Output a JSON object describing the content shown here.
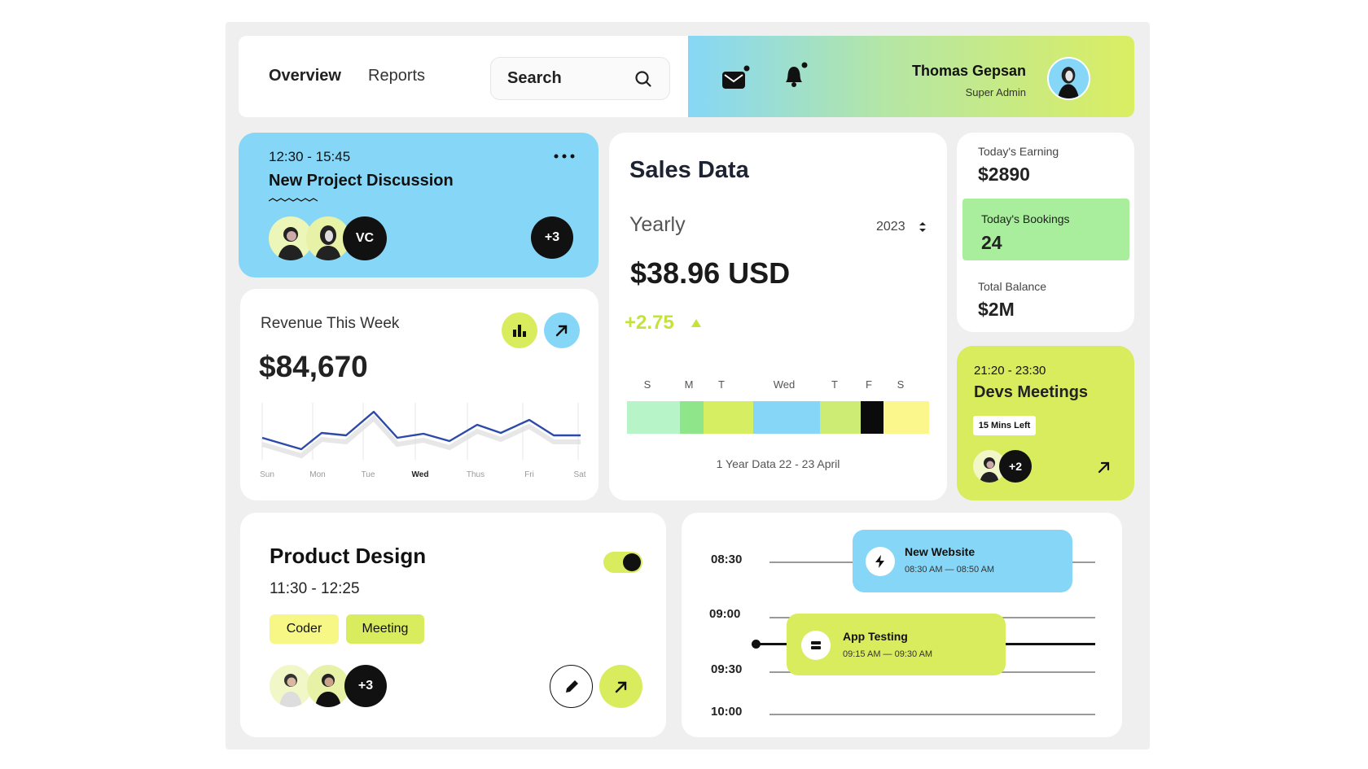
{
  "header": {
    "tabs": [
      {
        "label": "Overview"
      },
      {
        "label": "Reports"
      }
    ],
    "search": {
      "placeholder": "Search"
    },
    "user": {
      "name": "Thomas Gepsan",
      "role": "Super Admin"
    }
  },
  "meeting": {
    "time": "12:30 - 15:45",
    "title": "New Project Discussion",
    "initials": "VC",
    "extra": "+3"
  },
  "revenue": {
    "title": "Revenue This Week",
    "amount": "$84,670",
    "days": [
      "Sun",
      "Mon",
      "Tue",
      "Wed",
      "Thus",
      "Fri",
      "Sat"
    ],
    "active_day": "Wed"
  },
  "sales": {
    "title": "Sales Data",
    "period": "Yearly",
    "year": "2023",
    "amount": "$38.96 USD",
    "change": "+2.75",
    "day_labels": [
      "S",
      "M",
      "T",
      "Wed",
      "T",
      "F",
      "S"
    ],
    "segment_colors": [
      "#b7f5c9",
      "#8ee58a",
      "#d6ee62",
      "#86d7f7",
      "#cdec74",
      "#0b0b0b",
      "#fbf78c"
    ],
    "caption": "1 Year Data 22 - 23 April"
  },
  "stats": [
    {
      "label": "Today's Earning",
      "value": "$2890"
    },
    {
      "label": "Today's Bookings",
      "value": "24"
    },
    {
      "label": "Total Balance",
      "value": "$2M"
    }
  ],
  "devs": {
    "time": "21:20 - 23:30",
    "title": "Devs Meetings",
    "badge": "15 Mins Left",
    "extra": "+2"
  },
  "product": {
    "title": "Product Design",
    "time": "11:30 - 12:25",
    "tags": [
      "Coder",
      "Meeting"
    ],
    "extra": "+3",
    "toggle_on": true
  },
  "schedule": {
    "times": [
      "08:30",
      "09:00",
      "09:30",
      "10:00"
    ],
    "events": [
      {
        "title": "New Website",
        "time": "08:30 AM — 08:50 AM",
        "color": "#86d7f7"
      },
      {
        "title": "App Testing",
        "time": "09:15 AM — 09:30 AM",
        "color": "#d9ec5e"
      }
    ]
  },
  "colors": {
    "blue": "#86d7f7",
    "lime": "#d9ec5e",
    "green": "#a8ee9c",
    "line": "#2d4aa8"
  }
}
